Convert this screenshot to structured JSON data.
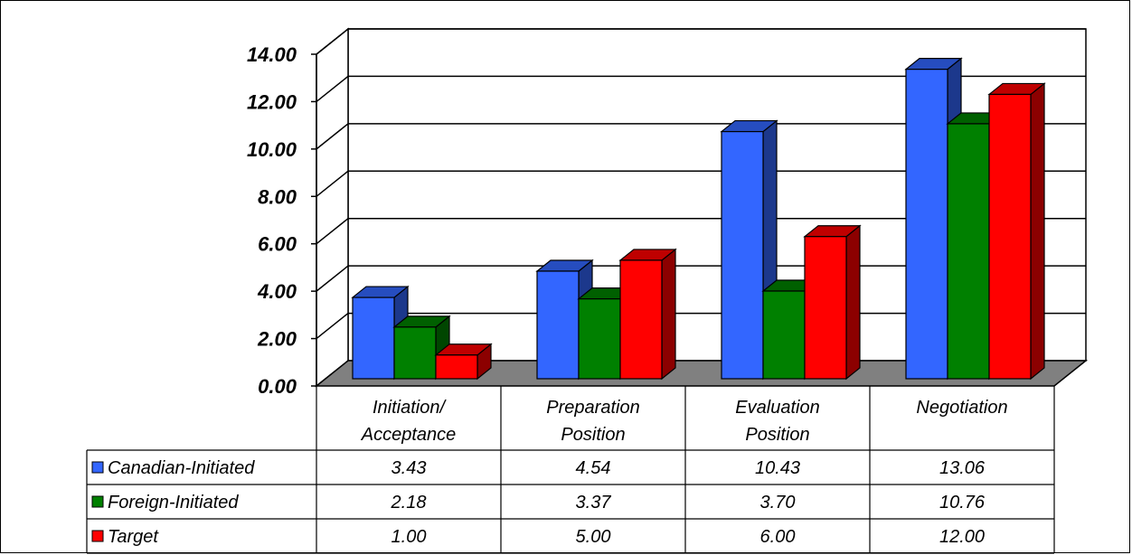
{
  "chart_data": {
    "type": "bar",
    "title": "",
    "xlabel": "",
    "ylabel": "",
    "ylim": [
      0,
      14
    ],
    "yticks": [
      "0.00",
      "2.00",
      "4.00",
      "6.00",
      "8.00",
      "10.00",
      "12.00",
      "14.00"
    ],
    "grid": true,
    "style": "3d-clustered-column with data table",
    "categories": [
      [
        "Initiation/",
        "Acceptance"
      ],
      [
        "Preparation",
        "Position"
      ],
      [
        "Evaluation",
        "Position"
      ],
      [
        "Negotiation"
      ]
    ],
    "series": [
      {
        "name": "Canadian-Initiated",
        "color": "#3366ff",
        "values": [
          3.43,
          4.54,
          10.43,
          13.06
        ],
        "labels": [
          "3.43",
          "4.54",
          "10.43",
          "13.06"
        ]
      },
      {
        "name": "Foreign-Initiated",
        "color": "#008000",
        "values": [
          2.18,
          3.37,
          3.7,
          10.76
        ],
        "labels": [
          "2.18",
          "3.37",
          "3.70",
          "10.76"
        ]
      },
      {
        "name": "Target",
        "color": "#ff0000",
        "values": [
          1.0,
          5.0,
          6.0,
          12.0
        ],
        "labels": [
          "1.00",
          "5.00",
          "6.00",
          "12.00"
        ]
      }
    ],
    "floor_color": "#808080"
  }
}
